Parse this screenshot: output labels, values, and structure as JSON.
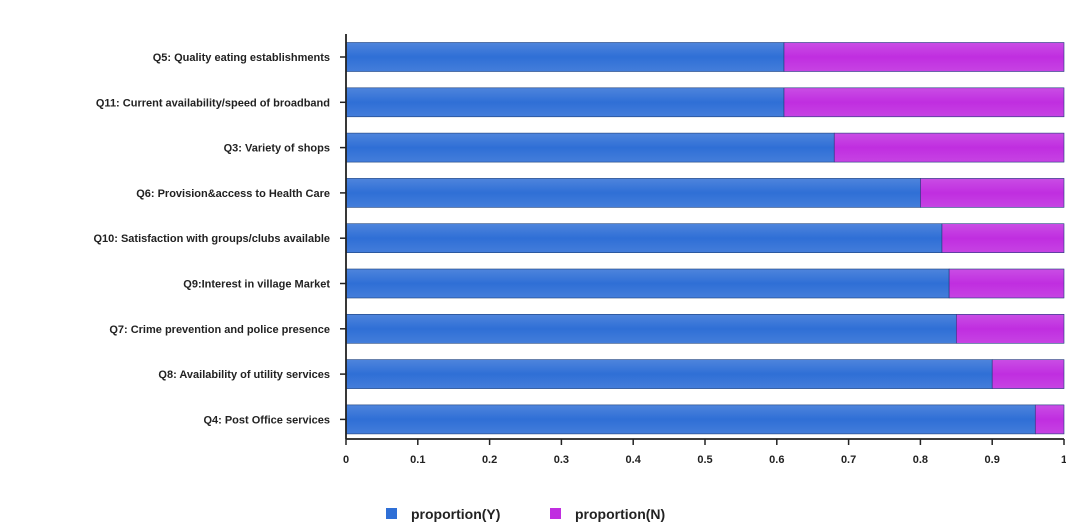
{
  "chart_data": {
    "type": "bar",
    "orientation": "horizontal",
    "stacked": true,
    "categories": [
      "Q5: Quality eating establishments",
      "Q11: Current availability/speed of broadband",
      "Q3: Variety of shops",
      "Q6: Provision&access to Health Care",
      "Q10: Satisfaction with groups/clubs available",
      "Q9:Interest in village Market",
      "Q7: Crime prevention and police presence",
      "Q8: Availability of utility services",
      "Q4: Post Office services"
    ],
    "series": [
      {
        "name": "proportion(Y)",
        "color": "#2f6fd6",
        "values": [
          0.61,
          0.61,
          0.68,
          0.8,
          0.83,
          0.84,
          0.85,
          0.9,
          0.96
        ]
      },
      {
        "name": "proportion(N)",
        "color": "#c02ee0",
        "values": [
          0.39,
          0.39,
          0.32,
          0.2,
          0.17,
          0.16,
          0.15,
          0.1,
          0.04
        ]
      }
    ],
    "x_ticks": [
      "0",
      "0.1",
      "0.2",
      "0.3",
      "0.4",
      "0.5",
      "0.6",
      "0.7",
      "0.8",
      "0.9",
      "1"
    ],
    "xlim": [
      0,
      1
    ],
    "grid": false,
    "legend_position": "bottom-center",
    "title": "",
    "xlabel": "",
    "ylabel": ""
  }
}
